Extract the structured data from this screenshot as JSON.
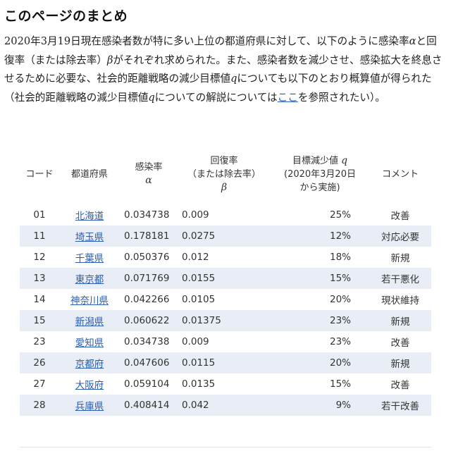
{
  "heading": "このページのまとめ",
  "intro": {
    "p1": "2020年3月19日現在感染者数が特に多い上位の都道府県に対して、以下のように感染率",
    "alpha": "α",
    "p2": "と回復率（または除去率）",
    "beta": "β",
    "p3": "がそれぞれ求められた。また、感染者数を減少させ、感染拡大を終息させるために必要な、社会的距離戦略の減少目標値",
    "q1": "q",
    "p4": "についても以下のとおり概算値が得られた（社会的距離戦略の減少目標値",
    "q2": "q",
    "p5": "についての解説については",
    "link": "ここ",
    "p6": "を参照されたい）。"
  },
  "table": {
    "headers": {
      "code": "コード",
      "prefecture": "都道府県",
      "infection_label": "感染率",
      "infection_symbol": "α",
      "recovery_label1": "回復率",
      "recovery_label2": "（または除去率）",
      "recovery_symbol": "β",
      "target_label1": "目標減少値",
      "target_symbol": "q",
      "target_label2": "(2020年3月20日",
      "target_label3": "から実施)",
      "comment": "コメント"
    },
    "rows": [
      {
        "code": "01",
        "prefecture": "北海道",
        "alpha": "0.034738",
        "beta": "0.009",
        "q": "25%",
        "comment": "改善"
      },
      {
        "code": "11",
        "prefecture": "埼玉県",
        "alpha": "0.178181",
        "beta": "0.0275",
        "q": "12%",
        "comment": "対応必要"
      },
      {
        "code": "12",
        "prefecture": "千葉県",
        "alpha": "0.050376",
        "beta": "0.012",
        "q": "18%",
        "comment": "新規"
      },
      {
        "code": "13",
        "prefecture": "東京都",
        "alpha": "0.071769",
        "beta": "0.0155",
        "q": "15%",
        "comment": "若干悪化"
      },
      {
        "code": "14",
        "prefecture": "神奈川県",
        "alpha": "0.042266",
        "beta": "0.0105",
        "q": "20%",
        "comment": "現状維持"
      },
      {
        "code": "15",
        "prefecture": "新潟県",
        "alpha": "0.060622",
        "beta": "0.01375",
        "q": "23%",
        "comment": "新規"
      },
      {
        "code": "23",
        "prefecture": "愛知県",
        "alpha": "0.034738",
        "beta": "0.009",
        "q": "23%",
        "comment": "改善"
      },
      {
        "code": "26",
        "prefecture": "京都府",
        "alpha": "0.047606",
        "beta": "0.0115",
        "q": "20%",
        "comment": "新規"
      },
      {
        "code": "27",
        "prefecture": "大阪府",
        "alpha": "0.059104",
        "beta": "0.0135",
        "q": "15%",
        "comment": "改善"
      },
      {
        "code": "28",
        "prefecture": "兵庫県",
        "alpha": "0.408414",
        "beta": "0.042",
        "q": "9%",
        "comment": "若干改善"
      }
    ]
  },
  "colors": {
    "link": "#2a5db0",
    "stripe": "#e8edf6",
    "text": "#222222"
  }
}
